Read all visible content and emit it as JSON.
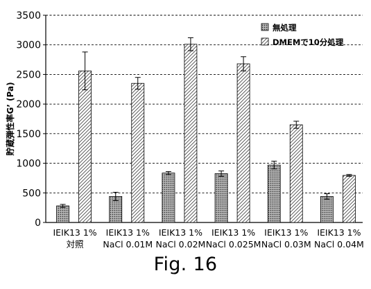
{
  "chart_data": {
    "type": "bar",
    "ylabel": "貯蔵弾性率G’ (Pa)",
    "ylim": [
      0,
      3500
    ],
    "yticks": [
      0,
      500,
      1000,
      1500,
      2000,
      2500,
      3000,
      3500
    ],
    "grid": true,
    "legend_position": "top-right",
    "categories": [
      [
        "IEIK13 1%",
        "対照"
      ],
      [
        "IEIK13 1%",
        "NaCl 0.01M"
      ],
      [
        "IEIK13 1%",
        "NaCl 0.02M"
      ],
      [
        "IEIK13 1%",
        "NaCl 0.025M"
      ],
      [
        "IEIK13 1%",
        "NaCl 0.03M"
      ],
      [
        "IEIK13 1%",
        "NaCl 0.04M"
      ]
    ],
    "series": [
      {
        "name": "無処理",
        "values": [
          280,
          440,
          835,
          825,
          970,
          440
        ],
        "errors": [
          25,
          70,
          25,
          45,
          65,
          45
        ]
      },
      {
        "name": "DMEMで10分処理",
        "values": [
          2560,
          2350,
          3010,
          2680,
          1650,
          795
        ],
        "errors": [
          320,
          100,
          110,
          120,
          60,
          15
        ]
      }
    ]
  },
  "caption": "Fig. 16"
}
